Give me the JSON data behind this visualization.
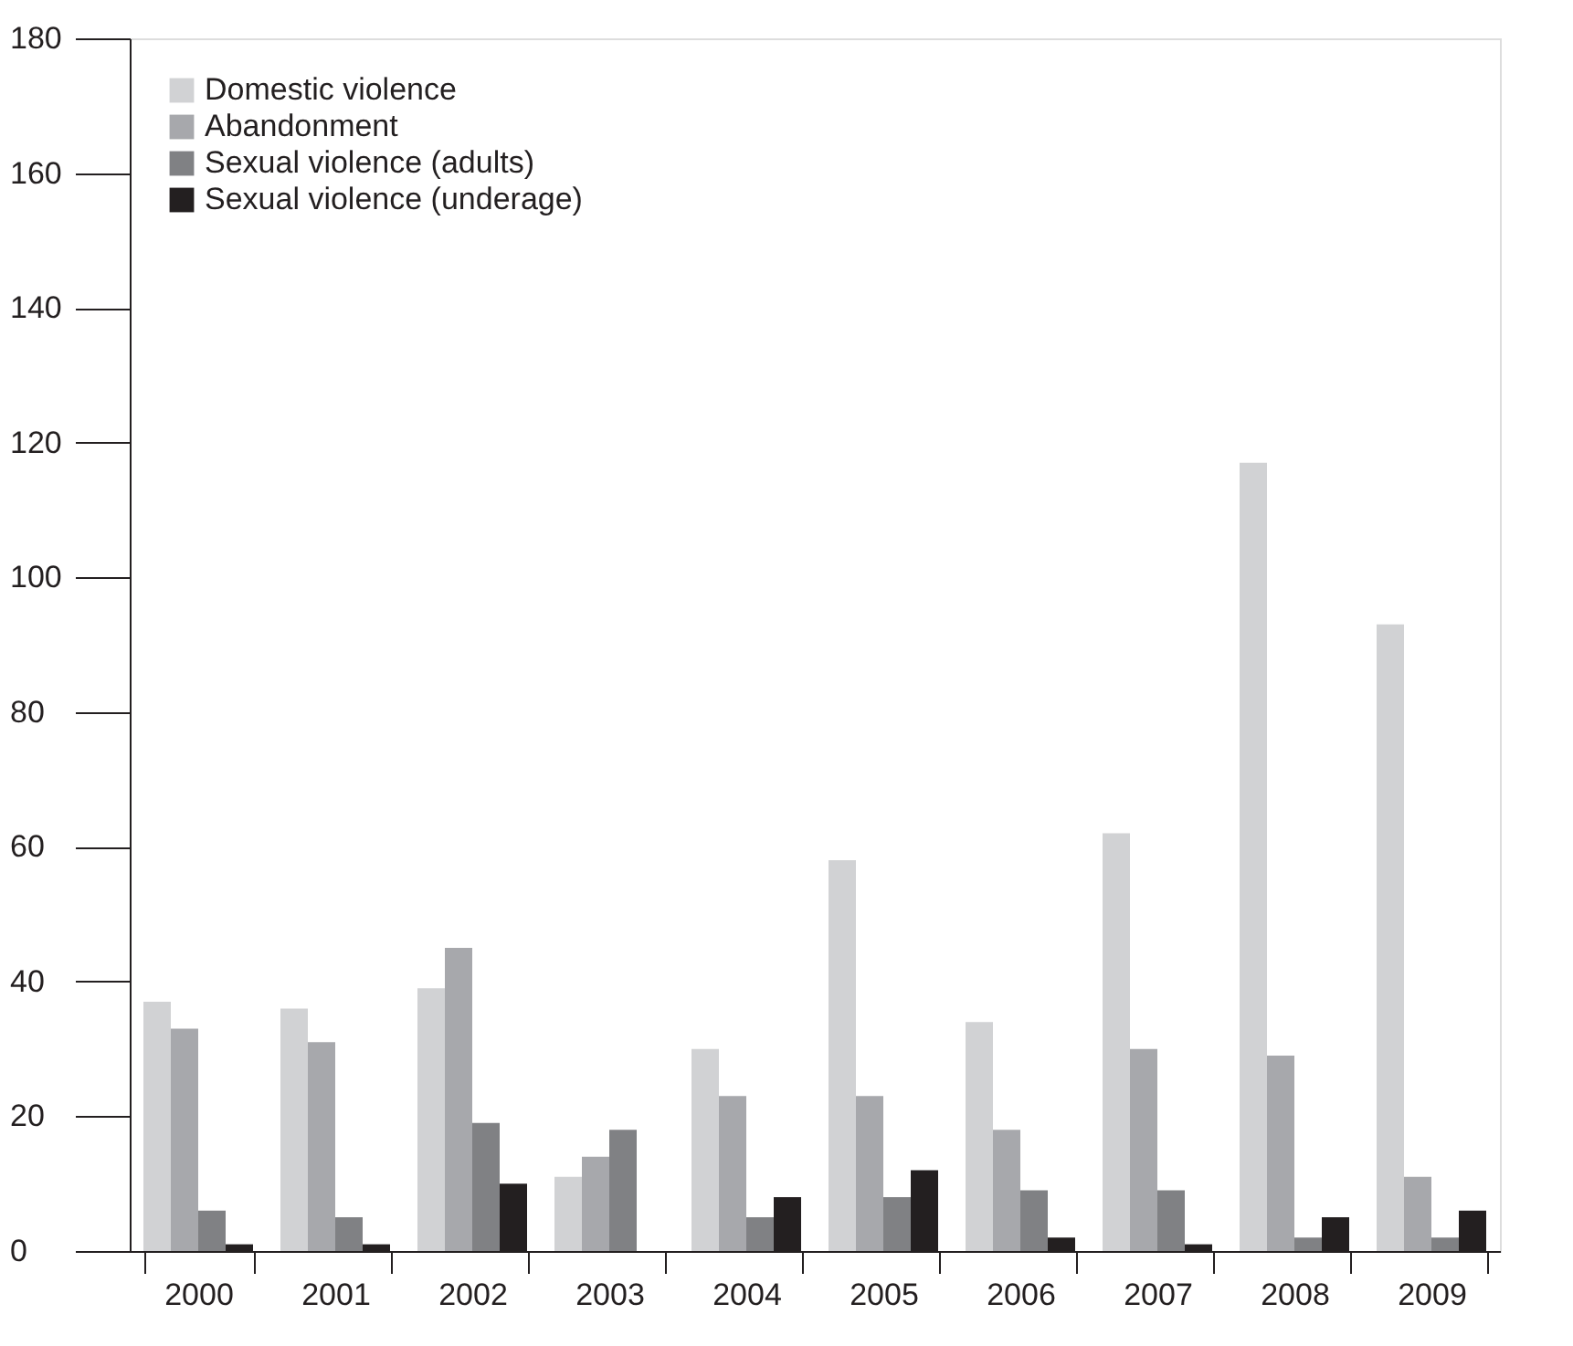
{
  "chart_data": {
    "type": "bar",
    "categories": [
      "2000",
      "2001",
      "2002",
      "2003",
      "2004",
      "2005",
      "2006",
      "2007",
      "2008",
      "2009"
    ],
    "series": [
      {
        "name": "Domestic violence",
        "color": "#d1d2d4",
        "values": [
          37,
          36,
          39,
          11,
          30,
          58,
          34,
          62,
          117,
          93
        ]
      },
      {
        "name": "Abandonment",
        "color": "#a7a8ac",
        "values": [
          33,
          31,
          45,
          14,
          23,
          23,
          18,
          30,
          29,
          11
        ]
      },
      {
        "name": "Sexual violence (adults)",
        "color": "#808184",
        "values": [
          6,
          5,
          19,
          18,
          5,
          8,
          9,
          9,
          2,
          2
        ]
      },
      {
        "name": "Sexual violence (underage)",
        "color": "#231f20",
        "values": [
          1,
          1,
          10,
          null,
          8,
          12,
          2,
          1,
          5,
          6
        ]
      }
    ],
    "ylim": [
      0,
      180
    ],
    "yticks": [
      0,
      20,
      40,
      60,
      80,
      100,
      120,
      140,
      160,
      180
    ],
    "grid": false,
    "legend": "top left"
  }
}
